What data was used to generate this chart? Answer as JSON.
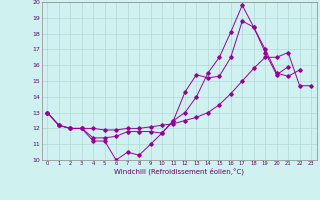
{
  "xlabel": "Windchill (Refroidissement éolien,°C)",
  "bg_color": "#cff1ef",
  "line_color": "#990099",
  "grid_color": "#b0d8d8",
  "xmin": 0,
  "xmax": 23,
  "ymin": 10,
  "ymax": 20,
  "line1_x": [
    0,
    1,
    2,
    3,
    4,
    5,
    6,
    7,
    8,
    9,
    10,
    11,
    12,
    13,
    14,
    15,
    16,
    17,
    18,
    19,
    20,
    21
  ],
  "line1_y": [
    13.0,
    12.2,
    12.0,
    12.0,
    11.2,
    11.2,
    10.0,
    10.5,
    10.3,
    11.0,
    11.7,
    12.5,
    13.0,
    14.0,
    15.5,
    16.5,
    18.1,
    19.8,
    18.4,
    16.8,
    15.4,
    15.9
  ],
  "line2_x": [
    0,
    1,
    2,
    3,
    4,
    5,
    6,
    7,
    8,
    9,
    10,
    11,
    12,
    13,
    14,
    15,
    16,
    17,
    18,
    19,
    20,
    21,
    22
  ],
  "line2_y": [
    13.0,
    12.2,
    12.0,
    12.0,
    11.4,
    11.4,
    11.5,
    11.8,
    11.8,
    11.8,
    11.7,
    12.5,
    14.3,
    15.4,
    15.2,
    15.3,
    16.5,
    18.8,
    18.4,
    17.0,
    15.5,
    15.3,
    15.7
  ],
  "line3_x": [
    0,
    1,
    2,
    3,
    4,
    5,
    6,
    7,
    8,
    9,
    10,
    11,
    12,
    13,
    14,
    15,
    16,
    17,
    18,
    19,
    20,
    21,
    22,
    23
  ],
  "line3_y": [
    13.0,
    12.2,
    12.0,
    12.0,
    12.0,
    11.9,
    11.9,
    12.0,
    12.0,
    12.1,
    12.2,
    12.3,
    12.5,
    12.7,
    13.0,
    13.5,
    14.2,
    15.0,
    15.8,
    16.5,
    16.5,
    16.8,
    14.7,
    14.7
  ]
}
